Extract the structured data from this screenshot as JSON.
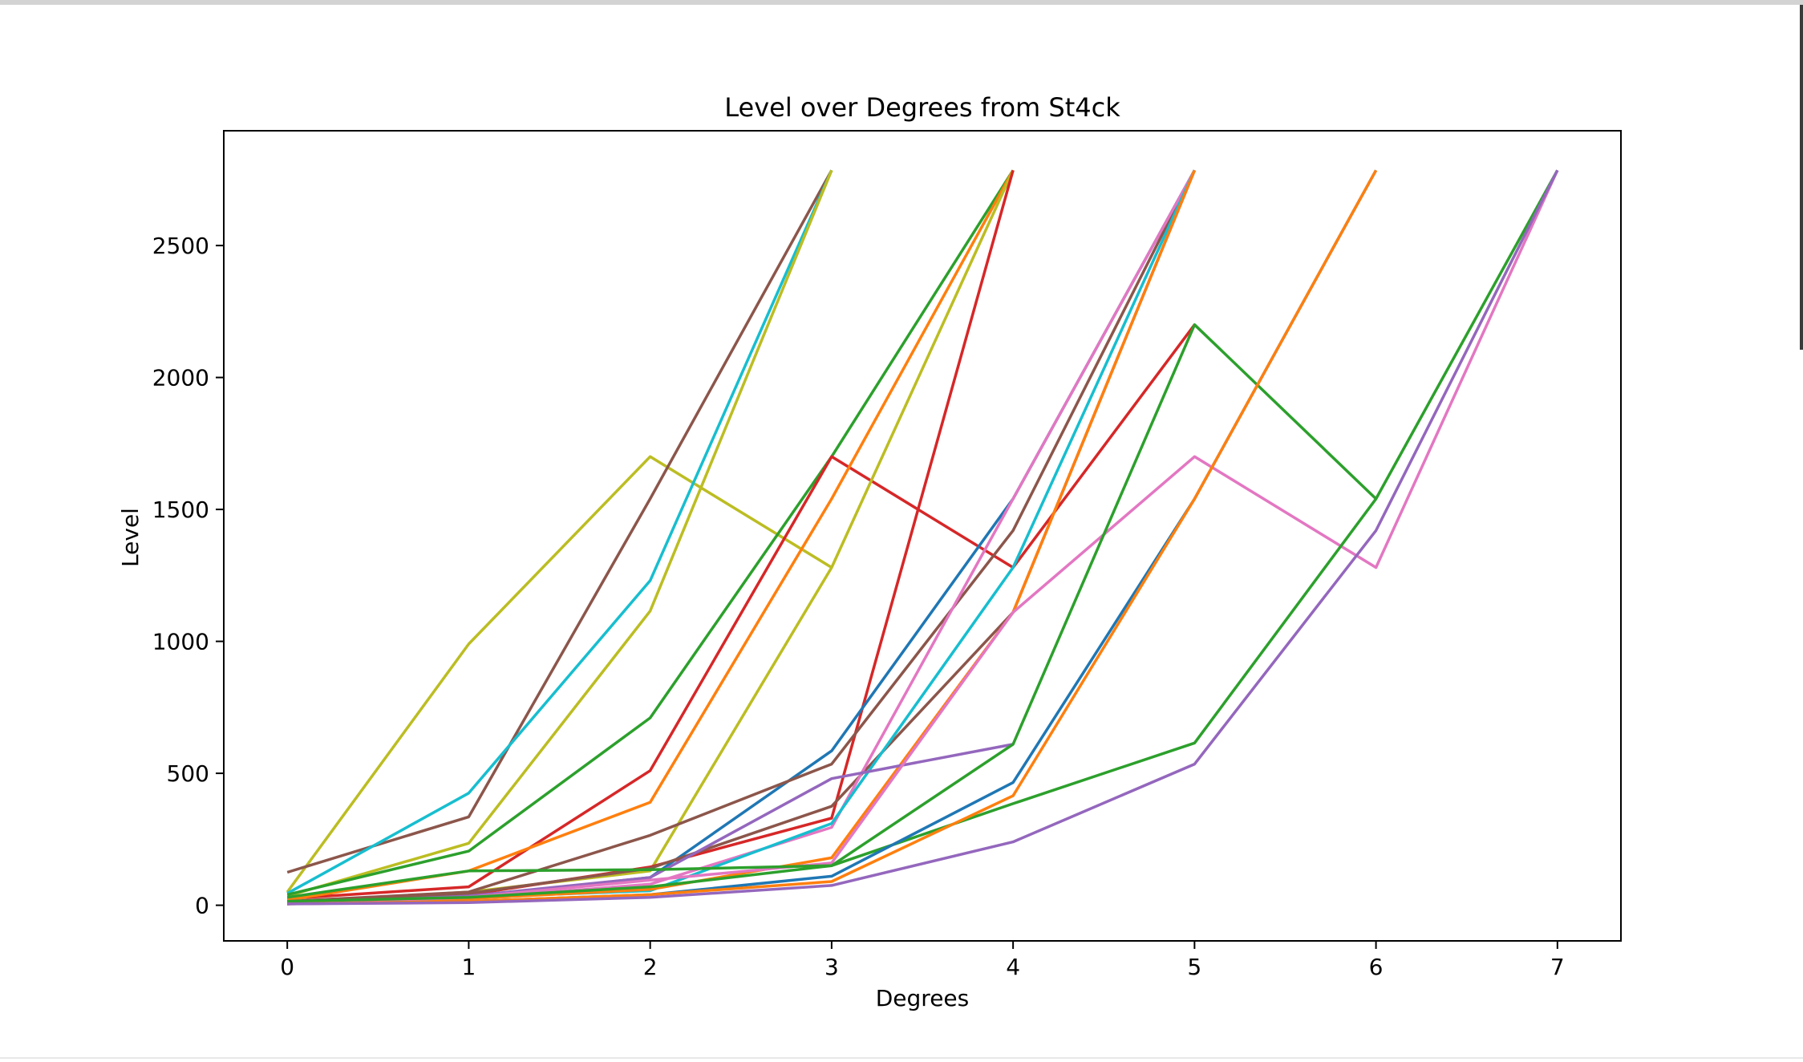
{
  "chart_data": {
    "type": "line",
    "title": "Level over Degrees from St4ck",
    "xlabel": "Degrees",
    "ylabel": "Level",
    "xlim": [
      -0.35,
      7.35
    ],
    "ylim": [
      -135,
      2935
    ],
    "xticks": [
      0,
      1,
      2,
      3,
      4,
      5,
      6,
      7
    ],
    "yticks": [
      0,
      500,
      1000,
      1500,
      2000,
      2500
    ],
    "grid": false,
    "legend": false,
    "series": [
      {
        "color": "#bcbd22",
        "x": [
          0,
          1,
          2,
          3
        ],
        "y": [
          50,
          990,
          1700,
          1280
        ]
      },
      {
        "color": "#8c564b",
        "x": [
          0,
          1,
          2,
          3
        ],
        "y": [
          125,
          335,
          1540,
          2785
        ]
      },
      {
        "color": "#17becf",
        "x": [
          0,
          1,
          2,
          3
        ],
        "y": [
          45,
          425,
          1230,
          2785
        ]
      },
      {
        "color": "#bcbd22",
        "x": [
          0,
          1,
          2,
          3
        ],
        "y": [
          35,
          235,
          1115,
          2785
        ]
      },
      {
        "color": "#2ca02c",
        "x": [
          0,
          1,
          2,
          3,
          4
        ],
        "y": [
          40,
          205,
          710,
          1700,
          2785
        ]
      },
      {
        "color": "#d62728",
        "x": [
          0,
          1,
          2,
          3,
          4,
          5
        ],
        "y": [
          25,
          70,
          510,
          1700,
          1280,
          2200
        ]
      },
      {
        "color": "#ff7f0e",
        "x": [
          0,
          1,
          2,
          3,
          4
        ],
        "y": [
          20,
          130,
          390,
          1540,
          2785
        ]
      },
      {
        "color": "#bcbd22",
        "x": [
          0,
          1,
          2,
          3,
          4
        ],
        "y": [
          10,
          50,
          130,
          1280,
          2785
        ]
      },
      {
        "color": "#d62728",
        "x": [
          0,
          1,
          2,
          3,
          4
        ],
        "y": [
          10,
          40,
          145,
          330,
          2785
        ]
      },
      {
        "color": "#1f77b4",
        "x": [
          0,
          1,
          2,
          3,
          4,
          5
        ],
        "y": [
          10,
          30,
          105,
          585,
          1540,
          2785
        ]
      },
      {
        "color": "#8c564b",
        "x": [
          0,
          1,
          2,
          3,
          4,
          5
        ],
        "y": [
          15,
          50,
          265,
          535,
          1420,
          2785
        ]
      },
      {
        "color": "#8c564b",
        "x": [
          0,
          1,
          2,
          3,
          4,
          5
        ],
        "y": [
          10,
          45,
          140,
          375,
          1110,
          2785
        ]
      },
      {
        "color": "#e377c2",
        "x": [
          0,
          1,
          2,
          3,
          4,
          5
        ],
        "y": [
          5,
          25,
          80,
          295,
          1540,
          2785
        ]
      },
      {
        "color": "#17becf",
        "x": [
          0,
          1,
          2,
          3,
          4,
          5
        ],
        "y": [
          10,
          30,
          55,
          310,
          1280,
          2785
        ]
      },
      {
        "color": "#ff7f0e",
        "x": [
          0,
          1,
          2,
          3,
          4,
          5
        ],
        "y": [
          5,
          25,
          60,
          180,
          1110,
          2785
        ]
      },
      {
        "color": "#9467bd",
        "x": [
          0,
          1,
          2,
          3,
          4
        ],
        "y": [
          5,
          35,
          105,
          480,
          610
        ]
      },
      {
        "color": "#e377c2",
        "x": [
          0,
          1,
          2,
          3,
          4,
          5,
          6,
          7
        ],
        "y": [
          5,
          30,
          95,
          160,
          1110,
          1700,
          1280,
          2785
        ]
      },
      {
        "color": "#2ca02c",
        "x": [
          0,
          1,
          2,
          3,
          4,
          5,
          6
        ],
        "y": [
          15,
          30,
          70,
          150,
          610,
          2200,
          1540
        ]
      },
      {
        "color": "#2ca02c",
        "x": [
          0,
          1,
          2,
          3,
          4,
          5,
          6,
          7
        ],
        "y": [
          30,
          130,
          135,
          150,
          385,
          615,
          1540,
          2785
        ]
      },
      {
        "color": "#1f77b4",
        "x": [
          0,
          1,
          2,
          3,
          4,
          5,
          6
        ],
        "y": [
          5,
          15,
          40,
          110,
          465,
          1540,
          2785
        ]
      },
      {
        "color": "#ff7f0e",
        "x": [
          0,
          1,
          2,
          3,
          4,
          5,
          6
        ],
        "y": [
          5,
          15,
          40,
          90,
          415,
          1540,
          2785
        ]
      },
      {
        "color": "#9467bd",
        "x": [
          0,
          1,
          2,
          3,
          4,
          5,
          6,
          7
        ],
        "y": [
          5,
          10,
          30,
          75,
          240,
          535,
          1420,
          2785
        ]
      }
    ]
  }
}
